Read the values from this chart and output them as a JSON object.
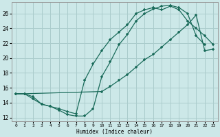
{
  "xlabel": "Humidex (Indice chaleur)",
  "bg_color": "#cce8e8",
  "grid_color": "#aacccc",
  "line_color": "#1a6b5a",
  "xlim": [
    -0.5,
    23.5
  ],
  "ylim": [
    11.5,
    27.5
  ],
  "xticks": [
    0,
    1,
    2,
    3,
    4,
    5,
    6,
    7,
    8,
    9,
    10,
    11,
    12,
    13,
    14,
    15,
    16,
    17,
    18,
    19,
    20,
    21,
    22,
    23
  ],
  "yticks": [
    12,
    14,
    16,
    18,
    20,
    22,
    24,
    26
  ],
  "line1_x": [
    0,
    1,
    2,
    3,
    4,
    5,
    6,
    7,
    8,
    9,
    10,
    11,
    12,
    13,
    14,
    15,
    16,
    17,
    18,
    19,
    20,
    21,
    22
  ],
  "line1_y": [
    15.2,
    15.2,
    14.8,
    13.8,
    13.5,
    13.0,
    12.4,
    12.2,
    12.2,
    13.2,
    17.5,
    19.5,
    21.8,
    23.2,
    25.0,
    26.0,
    26.6,
    27.0,
    27.1,
    26.8,
    26.0,
    23.0,
    21.8
  ],
  "line2_x": [
    0,
    1,
    2,
    3,
    4,
    5,
    6,
    7,
    8,
    9,
    10,
    11,
    12,
    13,
    14,
    15,
    16,
    17,
    18,
    19,
    20,
    21,
    22,
    23
  ],
  "line2_y": [
    15.2,
    15.2,
    14.5,
    13.8,
    13.5,
    13.2,
    12.8,
    12.5,
    17.0,
    19.2,
    21.0,
    22.5,
    23.5,
    24.5,
    26.0,
    26.5,
    26.8,
    26.5,
    27.0,
    26.5,
    25.0,
    24.0,
    23.0,
    21.8
  ],
  "line3_x": [
    0,
    1,
    10,
    11,
    12,
    13,
    14,
    15,
    16,
    17,
    18,
    19,
    20,
    21,
    22,
    23
  ],
  "line3_y": [
    15.2,
    15.2,
    15.5,
    16.2,
    17.0,
    17.8,
    18.8,
    19.8,
    20.5,
    21.5,
    22.5,
    23.5,
    24.5,
    25.8,
    21.0,
    21.2
  ]
}
